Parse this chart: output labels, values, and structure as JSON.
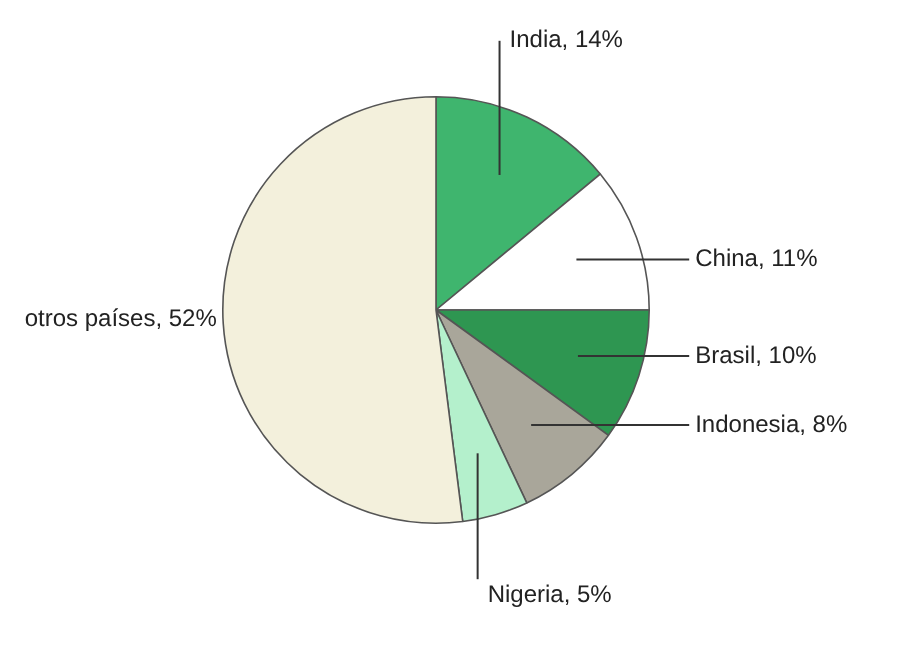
{
  "chart_data": {
    "type": "pie",
    "categories": [
      "India",
      "China",
      "Brasil",
      "Indonesia",
      "Nigeria",
      "otros países"
    ],
    "values": [
      14,
      11,
      10,
      8,
      5,
      52
    ],
    "value_labels": [
      "14%",
      "11%",
      "10%",
      "8%",
      "5%",
      "52%"
    ],
    "colors": [
      "#3fb56e",
      "#ffffff",
      "#2e9651",
      "#a9a69a",
      "#b4f0cc",
      "#f3f0dc"
    ]
  }
}
